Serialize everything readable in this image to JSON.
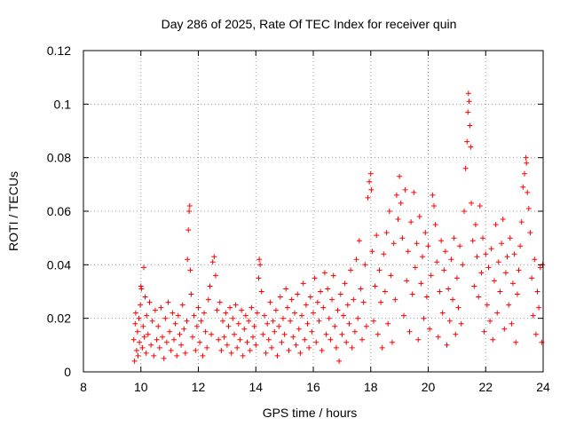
{
  "chart_data": {
    "type": "scatter",
    "title": "Day 286 of 2025, Rate Of TEC Index for receiver quin",
    "xlabel": "GPS time / hours",
    "ylabel": "ROTI / TECUs",
    "xlim": [
      8,
      24
    ],
    "ylim": [
      0,
      0.12
    ],
    "x_ticks": [
      8,
      10,
      12,
      14,
      16,
      18,
      20,
      22,
      24
    ],
    "x_tick_labels": [
      "8",
      "10",
      "12",
      "14",
      "16",
      "18",
      "20",
      "22",
      "24"
    ],
    "y_ticks": [
      0,
      0.02,
      0.04,
      0.06,
      0.08,
      0.1,
      0.12
    ],
    "y_tick_labels": [
      "0",
      "0.02",
      "0.04",
      "0.06",
      "0.08",
      "0.1",
      "0.12"
    ],
    "grid": true,
    "marker": "+",
    "series": [
      {
        "name": "ROTI",
        "color": "#ff0000",
        "points": [
          [
            9.75,
            0.012
          ],
          [
            9.78,
            0.004
          ],
          [
            9.8,
            0.018
          ],
          [
            9.82,
            0.022
          ],
          [
            9.85,
            0.008
          ],
          [
            9.88,
            0.015
          ],
          [
            9.9,
            0.006
          ],
          [
            9.93,
            0.02
          ],
          [
            9.95,
            0.011
          ],
          [
            9.98,
            0.025
          ],
          [
            10.0,
            0.032
          ],
          [
            10.02,
            0.031
          ],
          [
            10.05,
            0.009
          ],
          [
            10.08,
            0.017
          ],
          [
            10.1,
            0.039
          ],
          [
            10.12,
            0.013
          ],
          [
            10.15,
            0.028
          ],
          [
            10.18,
            0.007
          ],
          [
            10.2,
            0.021
          ],
          [
            10.25,
            0.014
          ],
          [
            10.3,
            0.026
          ],
          [
            10.35,
            0.01
          ],
          [
            10.4,
            0.019
          ],
          [
            10.45,
            0.006
          ],
          [
            10.5,
            0.023
          ],
          [
            10.55,
            0.012
          ],
          [
            10.6,
            0.017
          ],
          [
            10.65,
            0.009
          ],
          [
            10.7,
            0.024
          ],
          [
            10.75,
            0.013
          ],
          [
            10.8,
            0.005
          ],
          [
            10.85,
            0.02
          ],
          [
            10.9,
            0.011
          ],
          [
            10.95,
            0.026
          ],
          [
            11.0,
            0.015
          ],
          [
            11.05,
            0.008
          ],
          [
            11.1,
            0.022
          ],
          [
            11.15,
            0.012
          ],
          [
            11.2,
            0.018
          ],
          [
            11.25,
            0.006
          ],
          [
            11.3,
            0.021
          ],
          [
            11.35,
            0.014
          ],
          [
            11.4,
            0.01
          ],
          [
            11.45,
            0.025
          ],
          [
            11.5,
            0.016
          ],
          [
            11.55,
            0.007
          ],
          [
            11.6,
            0.019
          ],
          [
            11.62,
            0.042
          ],
          [
            11.65,
            0.053
          ],
          [
            11.68,
            0.06
          ],
          [
            11.7,
            0.062
          ],
          [
            11.72,
            0.038
          ],
          [
            11.75,
            0.029
          ],
          [
            11.8,
            0.013
          ],
          [
            11.85,
            0.021
          ],
          [
            11.9,
            0.008
          ],
          [
            11.95,
            0.017
          ],
          [
            12.0,
            0.024
          ],
          [
            12.05,
            0.011
          ],
          [
            12.1,
            0.019
          ],
          [
            12.15,
            0.006
          ],
          [
            12.2,
            0.022
          ],
          [
            12.25,
            0.015
          ],
          [
            12.3,
            0.009
          ],
          [
            12.35,
            0.027
          ],
          [
            12.4,
            0.032
          ],
          [
            12.45,
            0.014
          ],
          [
            12.5,
            0.041
          ],
          [
            12.55,
            0.043
          ],
          [
            12.6,
            0.036
          ],
          [
            12.65,
            0.023
          ],
          [
            12.7,
            0.012
          ],
          [
            12.75,
            0.026
          ],
          [
            12.8,
            0.008
          ],
          [
            12.85,
            0.019
          ],
          [
            12.9,
            0.013
          ],
          [
            12.95,
            0.022
          ],
          [
            13.0,
            0.01
          ],
          [
            13.05,
            0.017
          ],
          [
            13.1,
            0.024
          ],
          [
            13.15,
            0.007
          ],
          [
            13.2,
            0.02
          ],
          [
            13.25,
            0.014
          ],
          [
            13.3,
            0.025
          ],
          [
            13.35,
            0.009
          ],
          [
            13.4,
            0.018
          ],
          [
            13.45,
            0.012
          ],
          [
            13.5,
            0.023
          ],
          [
            13.55,
            0.006
          ],
          [
            13.6,
            0.016
          ],
          [
            13.65,
            0.021
          ],
          [
            13.7,
            0.011
          ],
          [
            13.75,
            0.019
          ],
          [
            13.8,
            0.008
          ],
          [
            13.85,
            0.024
          ],
          [
            13.9,
            0.013
          ],
          [
            13.95,
            0.017
          ],
          [
            14.0,
            0.01
          ],
          [
            14.05,
            0.022
          ],
          [
            14.1,
            0.035
          ],
          [
            14.12,
            0.042
          ],
          [
            14.15,
            0.04
          ],
          [
            14.2,
            0.03
          ],
          [
            14.25,
            0.014
          ],
          [
            14.3,
            0.021
          ],
          [
            14.35,
            0.007
          ],
          [
            14.4,
            0.018
          ],
          [
            14.45,
            0.012
          ],
          [
            14.5,
            0.026
          ],
          [
            14.55,
            0.009
          ],
          [
            14.6,
            0.019
          ],
          [
            14.65,
            0.015
          ],
          [
            14.7,
            0.023
          ],
          [
            14.75,
            0.006
          ],
          [
            14.8,
            0.017
          ],
          [
            14.85,
            0.028
          ],
          [
            14.9,
            0.011
          ],
          [
            14.95,
            0.02
          ],
          [
            15.0,
            0.014
          ],
          [
            15.05,
            0.031
          ],
          [
            15.1,
            0.024
          ],
          [
            15.15,
            0.008
          ],
          [
            15.2,
            0.019
          ],
          [
            15.25,
            0.027
          ],
          [
            15.3,
            0.013
          ],
          [
            15.35,
            0.022
          ],
          [
            15.4,
            0.01
          ],
          [
            15.45,
            0.029
          ],
          [
            15.5,
            0.016
          ],
          [
            15.55,
            0.007
          ],
          [
            15.6,
            0.021
          ],
          [
            15.65,
            0.033
          ],
          [
            15.7,
            0.012
          ],
          [
            15.75,
            0.025
          ],
          [
            15.8,
            0.018
          ],
          [
            15.85,
            0.009
          ],
          [
            15.9,
            0.028
          ],
          [
            15.95,
            0.015
          ],
          [
            16.0,
            0.022
          ],
          [
            16.05,
            0.035
          ],
          [
            16.1,
            0.011
          ],
          [
            16.15,
            0.026
          ],
          [
            16.2,
            0.019
          ],
          [
            16.25,
            0.03
          ],
          [
            16.3,
            0.008
          ],
          [
            16.35,
            0.024
          ],
          [
            16.4,
            0.037
          ],
          [
            16.45,
            0.014
          ],
          [
            16.5,
            0.031
          ],
          [
            16.55,
            0.02
          ],
          [
            16.6,
            0.012
          ],
          [
            16.65,
            0.027
          ],
          [
            16.7,
            0.036
          ],
          [
            16.75,
            0.017
          ],
          [
            16.8,
            0.009
          ],
          [
            16.85,
            0.023
          ],
          [
            16.9,
            0.004
          ],
          [
            16.95,
            0.029
          ],
          [
            17.0,
            0.014
          ],
          [
            17.05,
            0.021
          ],
          [
            17.1,
            0.033
          ],
          [
            17.15,
            0.011
          ],
          [
            17.2,
            0.025
          ],
          [
            17.25,
            0.018
          ],
          [
            17.3,
            0.038
          ],
          [
            17.35,
            0.009
          ],
          [
            17.4,
            0.027
          ],
          [
            17.45,
            0.015
          ],
          [
            17.5,
            0.042
          ],
          [
            17.55,
            0.02
          ],
          [
            17.6,
            0.049
          ],
          [
            17.65,
            0.031
          ],
          [
            17.7,
            0.012
          ],
          [
            17.75,
            0.026
          ],
          [
            17.8,
            0.04
          ],
          [
            17.85,
            0.017
          ],
          [
            17.9,
            0.065
          ],
          [
            17.95,
            0.071
          ],
          [
            18.0,
            0.074
          ],
          [
            18.02,
            0.068
          ],
          [
            18.05,
            0.045
          ],
          [
            18.1,
            0.019
          ],
          [
            18.15,
            0.032
          ],
          [
            18.2,
            0.051
          ],
          [
            18.25,
            0.014
          ],
          [
            18.3,
            0.038
          ],
          [
            18.35,
            0.026
          ],
          [
            18.4,
            0.009
          ],
          [
            18.45,
            0.044
          ],
          [
            18.5,
            0.03
          ],
          [
            18.55,
            0.052
          ],
          [
            18.6,
            0.018
          ],
          [
            18.65,
            0.06
          ],
          [
            18.7,
            0.036
          ],
          [
            18.75,
            0.011
          ],
          [
            18.8,
            0.048
          ],
          [
            18.85,
            0.027
          ],
          [
            18.9,
            0.066
          ],
          [
            18.95,
            0.057
          ],
          [
            19.0,
            0.073
          ],
          [
            19.05,
            0.063
          ],
          [
            19.1,
            0.05
          ],
          [
            19.15,
            0.021
          ],
          [
            19.2,
            0.068
          ],
          [
            19.25,
            0.034
          ],
          [
            19.3,
            0.045
          ],
          [
            19.35,
            0.015
          ],
          [
            19.4,
            0.056
          ],
          [
            19.45,
            0.029
          ],
          [
            19.5,
            0.067
          ],
          [
            19.55,
            0.039
          ],
          [
            19.6,
            0.048
          ],
          [
            19.65,
            0.012
          ],
          [
            19.7,
            0.058
          ],
          [
            19.75,
            0.033
          ],
          [
            19.8,
            0.043
          ],
          [
            19.85,
            0.02
          ],
          [
            19.9,
            0.052
          ],
          [
            19.95,
            0.028
          ],
          [
            20.0,
            0.047
          ],
          [
            20.05,
            0.016
          ],
          [
            20.1,
            0.036
          ],
          [
            20.15,
            0.066
          ],
          [
            20.2,
            0.062
          ],
          [
            20.25,
            0.055
          ],
          [
            20.3,
            0.041
          ],
          [
            20.35,
            0.013
          ],
          [
            20.4,
            0.03
          ],
          [
            20.45,
            0.049
          ],
          [
            20.5,
            0.022
          ],
          [
            20.55,
            0.038
          ],
          [
            20.6,
            0.045
          ],
          [
            20.65,
            0.01
          ],
          [
            20.7,
            0.031
          ],
          [
            20.75,
            0.019
          ],
          [
            20.8,
            0.042
          ],
          [
            20.85,
            0.027
          ],
          [
            20.9,
            0.05
          ],
          [
            20.95,
            0.014
          ],
          [
            21.0,
            0.035
          ],
          [
            21.05,
            0.024
          ],
          [
            21.1,
            0.047
          ],
          [
            21.15,
            0.018
          ],
          [
            21.2,
            0.04
          ],
          [
            21.25,
            0.06
          ],
          [
            21.3,
            0.076
          ],
          [
            21.35,
            0.086
          ],
          [
            21.38,
            0.097
          ],
          [
            21.4,
            0.104
          ],
          [
            21.42,
            0.101
          ],
          [
            21.45,
            0.092
          ],
          [
            21.48,
            0.084
          ],
          [
            21.5,
            0.063
          ],
          [
            21.55,
            0.049
          ],
          [
            21.6,
            0.032
          ],
          [
            21.65,
            0.055
          ],
          [
            21.7,
            0.043
          ],
          [
            21.75,
            0.028
          ],
          [
            21.8,
            0.062
          ],
          [
            21.85,
            0.037
          ],
          [
            21.9,
            0.05
          ],
          [
            21.95,
            0.015
          ],
          [
            22.0,
            0.044
          ],
          [
            22.05,
            0.025
          ],
          [
            22.1,
            0.039
          ],
          [
            22.15,
            0.019
          ],
          [
            22.2,
            0.046
          ],
          [
            22.25,
            0.012
          ],
          [
            22.3,
            0.034
          ],
          [
            22.35,
            0.055
          ],
          [
            22.4,
            0.022
          ],
          [
            22.45,
            0.041
          ],
          [
            22.5,
            0.03
          ],
          [
            22.55,
            0.048
          ],
          [
            22.6,
            0.057
          ],
          [
            22.65,
            0.016
          ],
          [
            22.7,
            0.037
          ],
          [
            22.75,
            0.043
          ],
          [
            22.8,
            0.025
          ],
          [
            22.85,
            0.05
          ],
          [
            22.9,
            0.018
          ],
          [
            22.95,
            0.033
          ],
          [
            23.0,
            0.044
          ],
          [
            23.05,
            0.011
          ],
          [
            23.1,
            0.029
          ],
          [
            23.15,
            0.038
          ],
          [
            23.2,
            0.047
          ],
          [
            23.25,
            0.056
          ],
          [
            23.3,
            0.069
          ],
          [
            23.35,
            0.074
          ],
          [
            23.4,
            0.08
          ],
          [
            23.42,
            0.078
          ],
          [
            23.45,
            0.067
          ],
          [
            23.5,
            0.061
          ],
          [
            23.55,
            0.052
          ],
          [
            23.6,
            0.035
          ],
          [
            23.65,
            0.021
          ],
          [
            23.7,
            0.042
          ],
          [
            23.75,
            0.014
          ],
          [
            23.8,
            0.03
          ],
          [
            23.85,
            0.024
          ],
          [
            23.9,
            0.039
          ],
          [
            23.95,
            0.011
          ],
          [
            23.98,
            0.04
          ]
        ]
      }
    ]
  }
}
